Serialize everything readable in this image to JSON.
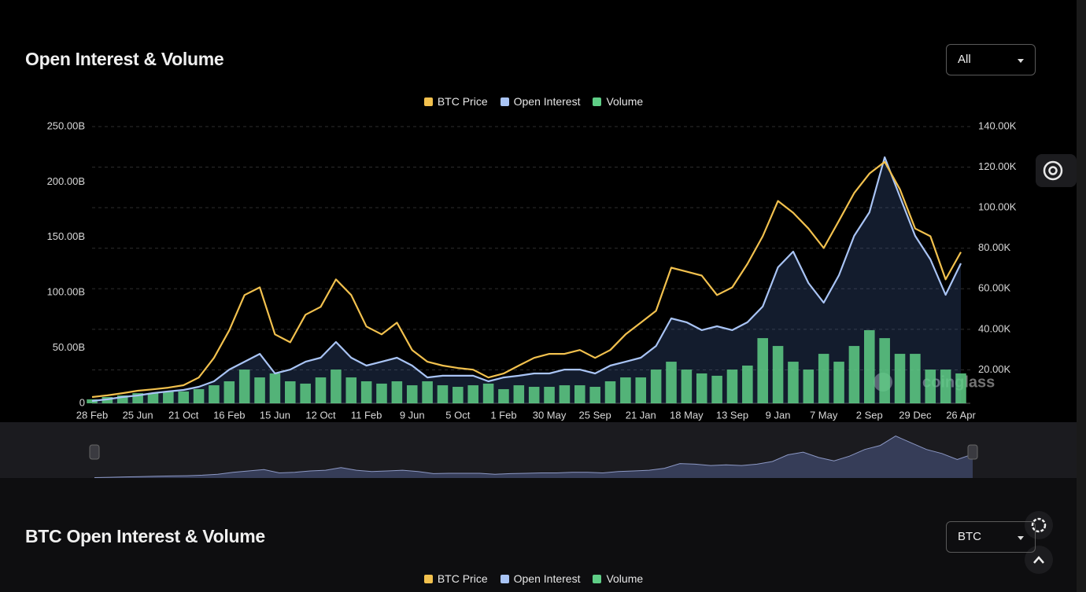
{
  "page": {
    "title": "Open Interest & Volume",
    "range_select": "All",
    "watermark": "coinglass",
    "section2_title": "BTC Open Interest & Volume",
    "section2_select": "BTC"
  },
  "chart_data": {
    "type": "line",
    "categories": [
      "28 Feb",
      null,
      null,
      "25 Jun",
      null,
      null,
      "21 Oct",
      null,
      null,
      "16 Feb",
      null,
      null,
      "15 Jun",
      null,
      null,
      "12 Oct",
      null,
      null,
      "11 Feb",
      null,
      null,
      "9 Jun",
      null,
      null,
      "5 Oct",
      null,
      null,
      "1 Feb",
      null,
      null,
      "30 May",
      null,
      null,
      "25 Sep",
      null,
      null,
      "21 Jan",
      null,
      null,
      "18 May",
      null,
      null,
      "13 Sep",
      null,
      null,
      "9 Jan",
      null,
      null,
      "7 May",
      null,
      null,
      "2 Sep",
      null,
      null,
      "29 Dec",
      null,
      null,
      "26 Apr"
    ],
    "series": [
      {
        "name": "BTC Price",
        "color": "#f2c14e",
        "axis": "y2",
        "type": "line",
        "values": [
          6.6,
          7.4,
          8.5,
          9.7,
          10.4,
          11.2,
          12.4,
          16.2,
          25.9,
          39.5,
          56.9,
          60.7,
          37.5,
          33.6,
          47.2,
          51.1,
          64.6,
          56.9,
          41.4,
          37.5,
          43.3,
          29.8,
          24.0,
          22.1,
          20.9,
          20.1,
          16.2,
          18.2,
          22.1,
          25.9,
          27.9,
          27.9,
          29.8,
          25.9,
          29.8,
          37.5,
          43.3,
          49.1,
          70.4,
          68.5,
          66.5,
          56.9,
          60.7,
          72.3,
          85.9,
          103.3,
          97.5,
          89.7,
          80.1,
          93.6,
          107.2,
          116.8,
          122.6,
          109.1,
          89.7,
          85.9,
          64.6,
          78.1
        ]
      },
      {
        "name": "Open Interest",
        "color": "#a9c4f5",
        "axis": "y",
        "type": "area",
        "values": [
          2.1,
          3.6,
          5.7,
          7.1,
          9.2,
          10.7,
          12.1,
          14.9,
          19.9,
          30.5,
          37.6,
          44.7,
          27.0,
          30.5,
          37.6,
          41.2,
          55.4,
          41.2,
          34.1,
          37.6,
          41.2,
          34.1,
          23.4,
          24.9,
          24.9,
          24.9,
          19.9,
          23.4,
          24.9,
          27.0,
          27.0,
          30.5,
          30.5,
          27.0,
          34.1,
          37.6,
          41.2,
          51.8,
          76.7,
          73.2,
          66.1,
          69.6,
          66.1,
          73.2,
          87.4,
          122.9,
          137.1,
          108.7,
          90.9,
          115.8,
          151.3,
          172.6,
          222.3,
          186.8,
          151.3,
          130.0,
          98.0,
          126.4
        ]
      },
      {
        "name": "Volume",
        "color": "#5fce86",
        "axis": "y",
        "type": "bar",
        "values": [
          3.6,
          5.7,
          7.1,
          9.2,
          9.2,
          10.7,
          10.7,
          12.8,
          16.3,
          19.9,
          30.5,
          23.4,
          27.0,
          19.9,
          17.8,
          23.4,
          30.5,
          23.4,
          19.9,
          17.8,
          19.9,
          16.3,
          19.9,
          16.3,
          14.9,
          16.3,
          17.8,
          12.8,
          16.3,
          14.9,
          14.9,
          16.3,
          16.3,
          14.9,
          19.9,
          23.4,
          23.4,
          30.5,
          37.6,
          30.5,
          27.0,
          24.9,
          30.5,
          34.1,
          58.9,
          51.8,
          37.6,
          30.5,
          44.7,
          37.6,
          51.8,
          66.1,
          58.9,
          44.7,
          44.7,
          30.5,
          30.5,
          27.0
        ]
      }
    ],
    "ylim": [
      0,
      250
    ],
    "yticks": [
      0,
      {
        "value": 50,
        "label": "50.00B"
      },
      {
        "value": 100,
        "label": "100.00B"
      },
      {
        "value": 150,
        "label": "150.00B"
      },
      {
        "value": 200,
        "label": "200.00B"
      },
      {
        "value": 250,
        "label": "250.00B"
      }
    ],
    "y2lim": [
      3.5,
      140
    ],
    "y2ticks": [
      {
        "value": 20,
        "label": "20.00K"
      },
      {
        "value": 40,
        "label": "40.00K"
      },
      {
        "value": 60,
        "label": "60.00K"
      },
      {
        "value": 80,
        "label": "80.00K"
      },
      {
        "value": 100,
        "label": "100.00K"
      },
      {
        "value": 120,
        "label": "120.00K"
      },
      {
        "value": 140,
        "label": "140.00K"
      }
    ],
    "grid": "y2"
  }
}
